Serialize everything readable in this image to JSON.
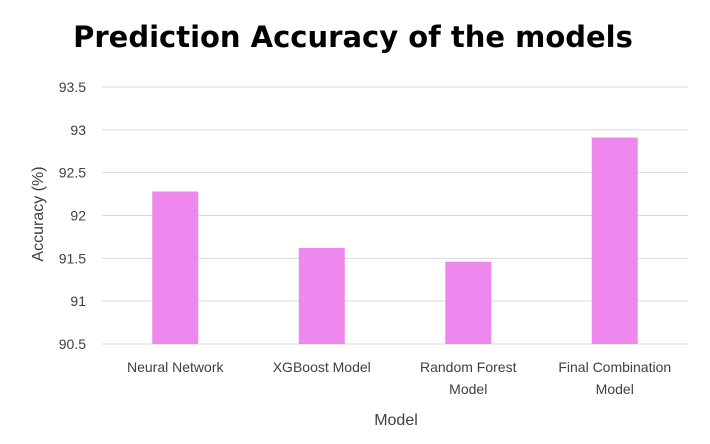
{
  "chart_data": {
    "type": "bar",
    "title": "Prediction Accuracy of the models",
    "xlabel": "Model",
    "ylabel": "Accuracy (%)",
    "categories": [
      [
        "Neural Network"
      ],
      [
        "XGBoost Model"
      ],
      [
        "Random Forest",
        "Model"
      ],
      [
        "Final Combination",
        "Model"
      ]
    ],
    "values": [
      92.28,
      91.62,
      91.46,
      92.91
    ],
    "ylim": [
      90.5,
      93.5
    ],
    "yticks": [
      "90.5",
      "91",
      "91.5",
      "92",
      "92.5",
      "93",
      "93.5"
    ],
    "grid": true,
    "legend": "none",
    "bar_color": "#ee88ee"
  }
}
